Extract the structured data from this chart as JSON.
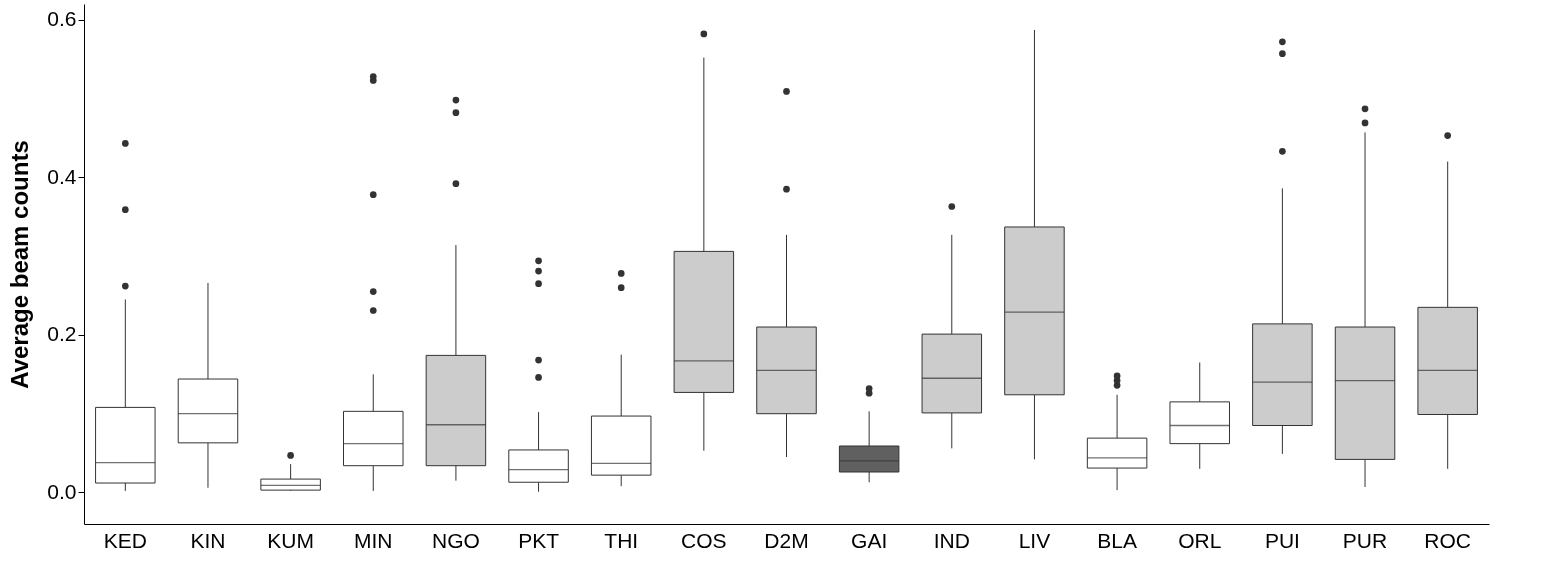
{
  "chart_data": {
    "type": "box",
    "ylabel": "Average beam counts",
    "categories": [
      "KED",
      "KIN",
      "KUM",
      "MIN",
      "NGO",
      "PKT",
      "THI",
      "COS",
      "D2M",
      "GAI",
      "IND",
      "LIV",
      "BLA",
      "ORL",
      "PUI",
      "PUR",
      "ROC"
    ],
    "colors": [
      "#ffffff",
      "#ffffff",
      "#ffffff",
      "#ffffff",
      "#cccccc",
      "#ffffff",
      "#ffffff",
      "#cccccc",
      "#cccccc",
      "#606060",
      "#cccccc",
      "#cccccc",
      "#ffffff",
      "#ffffff",
      "#cccccc",
      "#cccccc",
      "#cccccc"
    ],
    "boxes": [
      {
        "low": 0.002,
        "q1": 0.012,
        "median": 0.038,
        "q3": 0.108,
        "high": 0.245,
        "outliers": [
          0.262,
          0.359,
          0.443
        ]
      },
      {
        "low": 0.006,
        "q1": 0.063,
        "median": 0.1,
        "q3": 0.144,
        "high": 0.266
      },
      {
        "low": 0.002,
        "q1": 0.003,
        "median": 0.009,
        "q3": 0.017,
        "high": 0.036,
        "outliers": [
          0.047
        ]
      },
      {
        "low": 0.002,
        "q1": 0.034,
        "median": 0.062,
        "q3": 0.103,
        "high": 0.15,
        "outliers": [
          0.231,
          0.255,
          0.378,
          0.523,
          0.528
        ]
      },
      {
        "low": 0.015,
        "q1": 0.034,
        "median": 0.086,
        "q3": 0.174,
        "high": 0.314,
        "outliers": [
          0.392,
          0.482,
          0.498
        ]
      },
      {
        "low": 0.001,
        "q1": 0.013,
        "median": 0.029,
        "q3": 0.054,
        "high": 0.102,
        "outliers": [
          0.146,
          0.168,
          0.265,
          0.281,
          0.294
        ]
      },
      {
        "low": 0.008,
        "q1": 0.022,
        "median": 0.037,
        "q3": 0.097,
        "high": 0.175,
        "outliers": [
          0.26,
          0.278
        ]
      },
      {
        "low": 0.053,
        "q1": 0.127,
        "median": 0.167,
        "q3": 0.306,
        "high": 0.552,
        "outliers": [
          0.582
        ]
      },
      {
        "low": 0.045,
        "q1": 0.1,
        "median": 0.155,
        "q3": 0.21,
        "high": 0.327,
        "outliers": [
          0.385,
          0.509
        ]
      },
      {
        "low": 0.013,
        "q1": 0.026,
        "median": 0.04,
        "q3": 0.059,
        "high": 0.103,
        "outliers": [
          0.126,
          0.132
        ]
      },
      {
        "low": 0.056,
        "q1": 0.101,
        "median": 0.145,
        "q3": 0.201,
        "high": 0.327,
        "outliers": [
          0.363
        ]
      },
      {
        "low": 0.042,
        "q1": 0.124,
        "median": 0.229,
        "q3": 0.337,
        "high": 0.587
      },
      {
        "low": 0.003,
        "q1": 0.031,
        "median": 0.044,
        "q3": 0.069,
        "high": 0.124,
        "outliers": [
          0.136,
          0.142,
          0.148
        ]
      },
      {
        "low": 0.03,
        "q1": 0.062,
        "median": 0.085,
        "q3": 0.115,
        "high": 0.165
      },
      {
        "low": 0.049,
        "q1": 0.085,
        "median": 0.14,
        "q3": 0.214,
        "high": 0.386,
        "outliers": [
          0.433,
          0.557,
          0.572
        ]
      },
      {
        "low": 0.007,
        "q1": 0.042,
        "median": 0.142,
        "q3": 0.21,
        "high": 0.457,
        "outliers": [
          0.469,
          0.487
        ]
      },
      {
        "low": 0.03,
        "q1": 0.099,
        "median": 0.155,
        "q3": 0.235,
        "high": 0.42,
        "outliers": [
          0.453
        ]
      }
    ],
    "ylim": [
      -0.04,
      0.62
    ],
    "yticks": [
      {
        "value": 0,
        "label": "0.0"
      },
      0.2,
      0.4,
      0.6
    ]
  }
}
